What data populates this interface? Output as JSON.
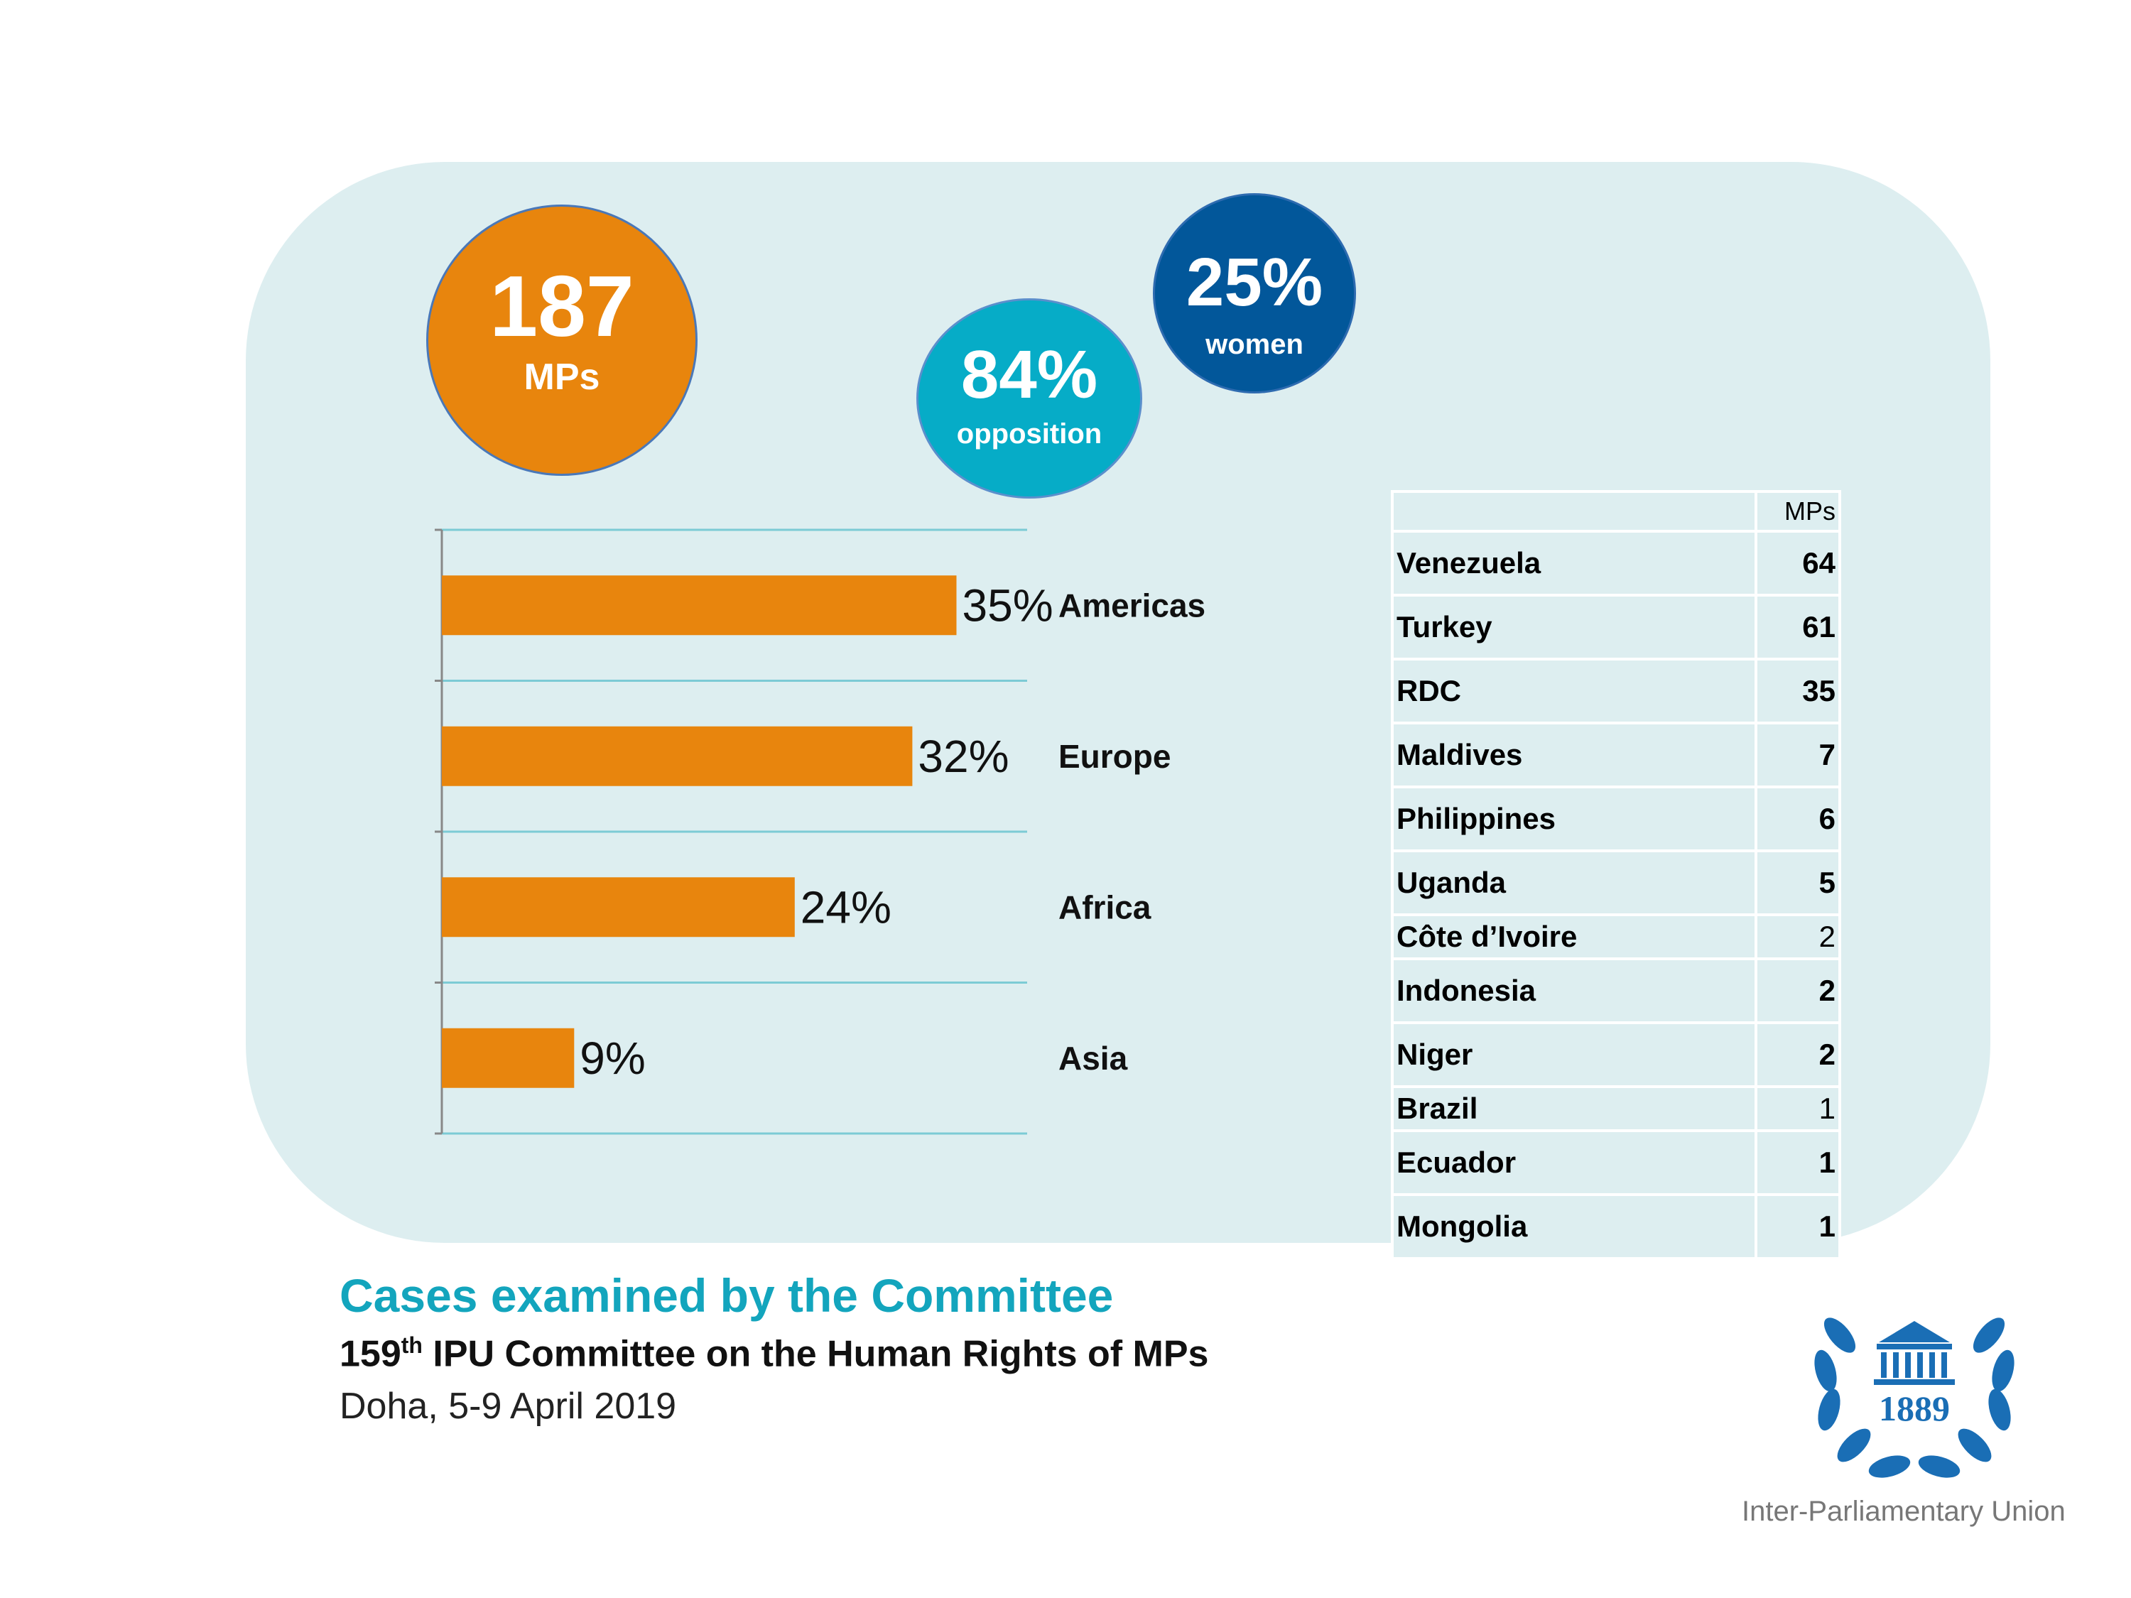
{
  "stats": {
    "mps": {
      "value": "187",
      "label": "MPs",
      "color": "#e8850d"
    },
    "opposition": {
      "value": "84%",
      "label": "opposition",
      "color": "#06acc7"
    },
    "women": {
      "value": "25%",
      "label": "women",
      "color": "#02579a"
    }
  },
  "chart_data": {
    "type": "bar",
    "orientation": "horizontal",
    "categories": [
      "Americas",
      "Europe",
      "Africa",
      "Asia"
    ],
    "values": [
      35,
      32,
      24,
      9
    ],
    "data_labels": [
      "35%",
      "32%",
      "24%",
      "9%"
    ],
    "xlim": [
      0,
      40
    ],
    "grid": true,
    "bar_color": "#e8850d",
    "grid_color": "#7ccbd5"
  },
  "table": {
    "header": [
      "",
      "MPs"
    ],
    "rows": [
      {
        "country": "Venezuela",
        "mps": "64",
        "bold": true
      },
      {
        "country": "Turkey",
        "mps": "61",
        "bold": true
      },
      {
        "country": "RDC",
        "mps": "35",
        "bold": true
      },
      {
        "country": "Maldives",
        "mps": "7",
        "bold": true
      },
      {
        "country": "Philippines",
        "mps": "6",
        "bold": true
      },
      {
        "country": "Uganda",
        "mps": "5",
        "bold": true
      },
      {
        "country": "Côte d’Ivoire",
        "mps": "2",
        "bold": false
      },
      {
        "country": "Indonesia",
        "mps": "2",
        "bold": true
      },
      {
        "country": "Niger",
        "mps": "2",
        "bold": true
      },
      {
        "country": "Brazil",
        "mps": "1",
        "bold": false
      },
      {
        "country": "Ecuador",
        "mps": "1",
        "bold": true
      },
      {
        "country": "Mongolia",
        "mps": "1",
        "bold": true
      }
    ]
  },
  "footer": {
    "title": "Cases examined by the Committee",
    "subtitle_num": "159",
    "subtitle_sup": "th",
    "subtitle_rest": " IPU Committee on the Human Rights of MPs",
    "dateline": "Doha, 5-9 April 2019"
  },
  "logo": {
    "year": "1889",
    "org": "Inter-Parliamentary Union",
    "color": "#1a6eb5"
  }
}
